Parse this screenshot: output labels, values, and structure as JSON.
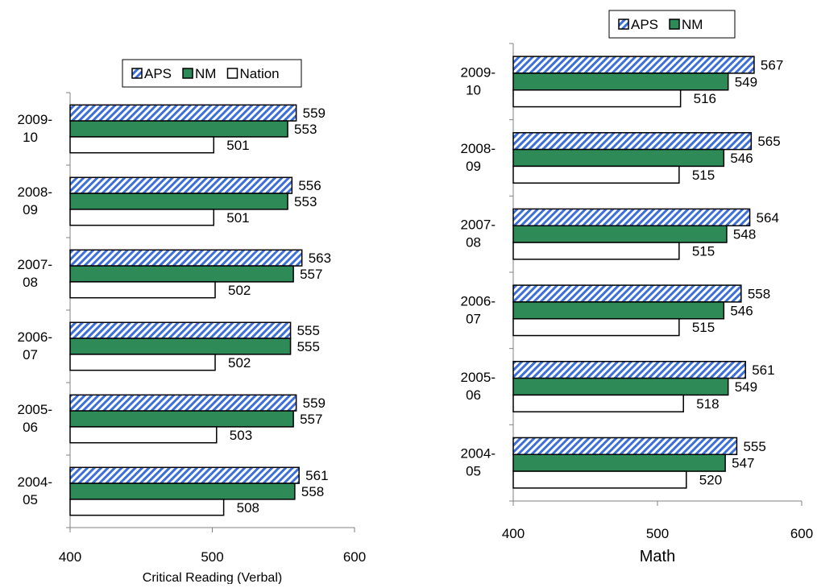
{
  "colors": {
    "aps_hatch": "#3d6fd8",
    "nm": "#2e8b57",
    "nation": "#ffffff",
    "stroke": "#000000"
  },
  "chart_data": [
    {
      "type": "bar",
      "orientation": "horizontal",
      "title": "",
      "xlabel": "Critical Reading (Verbal)",
      "ylabel": "",
      "xlim": [
        400,
        600
      ],
      "xticks": [
        400,
        500,
        600
      ],
      "grid": false,
      "legend": {
        "position": "top-right",
        "entries": [
          "APS",
          "NM",
          "Nation"
        ]
      },
      "categories": [
        {
          "line1": "2009-",
          "line2": "10"
        },
        {
          "line1": "2008-",
          "line2": "09"
        },
        {
          "line1": "2007-",
          "line2": "08"
        },
        {
          "line1": "2006-",
          "line2": "07"
        },
        {
          "line1": "2005-",
          "line2": "06"
        },
        {
          "line1": "2004-",
          "line2": "05"
        }
      ],
      "series": [
        {
          "name": "APS",
          "style": "hatched",
          "values": [
            559,
            556,
            563,
            555,
            559,
            561
          ]
        },
        {
          "name": "NM",
          "style": "green",
          "values": [
            553,
            553,
            557,
            555,
            557,
            558
          ]
        },
        {
          "name": "Nation",
          "style": "white",
          "values": [
            501,
            501,
            502,
            502,
            503,
            508
          ]
        }
      ]
    },
    {
      "type": "bar",
      "orientation": "horizontal",
      "title": "",
      "xlabel": "Math",
      "ylabel": "",
      "xlim": [
        400,
        600
      ],
      "xticks": [
        400,
        500,
        600
      ],
      "grid": false,
      "legend": {
        "position": "top-center",
        "entries": [
          "APS",
          "NM"
        ]
      },
      "categories": [
        {
          "line1": "2009-",
          "line2": "10"
        },
        {
          "line1": "2008-",
          "line2": "09"
        },
        {
          "line1": "2007-",
          "line2": "08"
        },
        {
          "line1": "2006-",
          "line2": "07"
        },
        {
          "line1": "2005-",
          "line2": "06"
        },
        {
          "line1": "2004-",
          "line2": "05"
        }
      ],
      "series": [
        {
          "name": "APS",
          "style": "hatched",
          "values": [
            567,
            565,
            564,
            558,
            561,
            555
          ]
        },
        {
          "name": "NM",
          "style": "green",
          "values": [
            549,
            546,
            548,
            546,
            549,
            547
          ]
        },
        {
          "name": "Nation",
          "style": "white",
          "values": [
            516,
            515,
            515,
            515,
            518,
            520
          ]
        }
      ]
    }
  ]
}
